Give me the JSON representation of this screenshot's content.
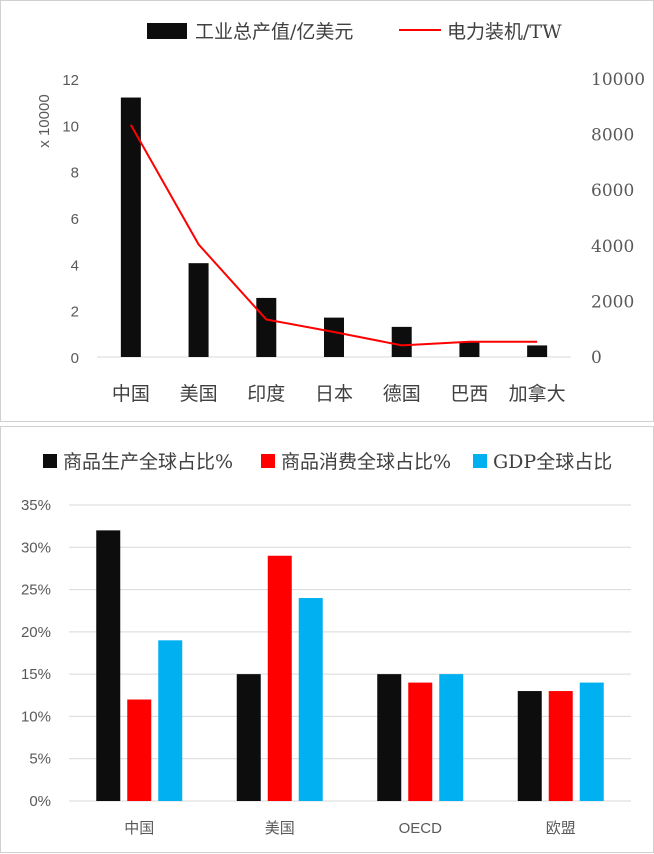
{
  "chart_data": [
    {
      "type": "bar+line",
      "categories": [
        "中国",
        "美国",
        "印度",
        "日本",
        "德国",
        "巴西",
        "加拿大"
      ],
      "series": [
        {
          "name": "工业总产值/亿美元",
          "type": "bar",
          "axis": "left",
          "color": "#0d0d0d",
          "values": [
            11.2,
            4.05,
            2.55,
            1.7,
            1.3,
            0.65,
            0.5
          ]
        },
        {
          "name": "电力装机/TW",
          "type": "line",
          "axis": "right",
          "color": "#ff0000",
          "values": [
            8350,
            4050,
            1350,
            900,
            420,
            550,
            550
          ]
        }
      ],
      "left_axis": {
        "ylim": [
          0,
          12
        ],
        "ticks": [
          "0",
          "2",
          "4",
          "6",
          "8",
          "10",
          "12"
        ],
        "multiplier_label": "x 10000"
      },
      "right_axis": {
        "ylim": [
          0,
          10000
        ],
        "ticks": [
          "0",
          "2000",
          "4000",
          "6000",
          "8000",
          "10000"
        ]
      },
      "legend_position": "top",
      "grid": false
    },
    {
      "type": "bar",
      "categories": [
        "中国",
        "美国",
        "OECD",
        "欧盟"
      ],
      "series": [
        {
          "name": "商品生产全球占比%",
          "color": "#0d0d0d",
          "values": [
            32,
            15,
            15,
            13
          ]
        },
        {
          "name": "商品消费全球占比%",
          "color": "#ff0000",
          "values": [
            12,
            29,
            14,
            13
          ]
        },
        {
          "name": "GDP全球占比",
          "color": "#00b0f0",
          "values": [
            19,
            24,
            15,
            14
          ]
        }
      ],
      "ylim": [
        0,
        35
      ],
      "yticks": [
        "0%",
        "5%",
        "10%",
        "15%",
        "20%",
        "25%",
        "30%",
        "35%"
      ],
      "legend_position": "top",
      "grid": true
    }
  ]
}
